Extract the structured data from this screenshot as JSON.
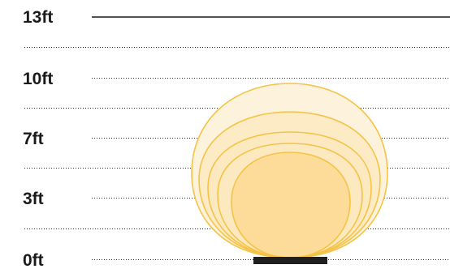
{
  "height_scale": {
    "unit": "ft",
    "levels": [
      {
        "label": "13ft",
        "line": "solid"
      },
      {
        "label": "10ft",
        "line": "dotted"
      },
      {
        "label": "7ft",
        "line": "dotted"
      },
      {
        "label": "3ft",
        "line": "dotted"
      },
      {
        "label": "0ft",
        "line": "dotted"
      }
    ]
  },
  "light_spread": {
    "rings": 4,
    "colors": {
      "outer_fill": "#fdf3dc",
      "ring_fill": "#fce9bf",
      "inner_fill": "#fbd990",
      "outline": "#f4c347",
      "fixture": "#1f1f1f"
    }
  }
}
